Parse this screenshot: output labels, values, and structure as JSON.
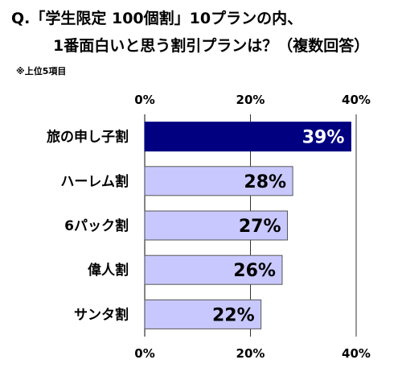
{
  "header": {
    "title_line1": "Q.「学生限定 100個割」10プランの内、",
    "title_line2": "1番面白いと思う割引プランは？（複数回答）",
    "note": "※上位5項目"
  },
  "chart_data": {
    "type": "bar",
    "orientation": "horizontal",
    "categories": [
      "旅の申し子割",
      "ハーレム割",
      "6パック割",
      "偉人割",
      "サンタ割"
    ],
    "values": [
      39,
      28,
      27,
      26,
      22
    ],
    "value_labels": [
      "39%",
      "28%",
      "27%",
      "26%",
      "22%"
    ],
    "xlim": [
      0,
      40
    ],
    "ticks": [
      0,
      20,
      40
    ],
    "tick_labels": [
      "0%",
      "20%",
      "40%"
    ],
    "tick_labels_top": true,
    "tick_labels_bottom": true,
    "grid": true,
    "colors": {
      "highlight_bar": "#000080",
      "bar": "#c8c8ff",
      "bar_border": "#555555",
      "grid": "#333333"
    }
  }
}
